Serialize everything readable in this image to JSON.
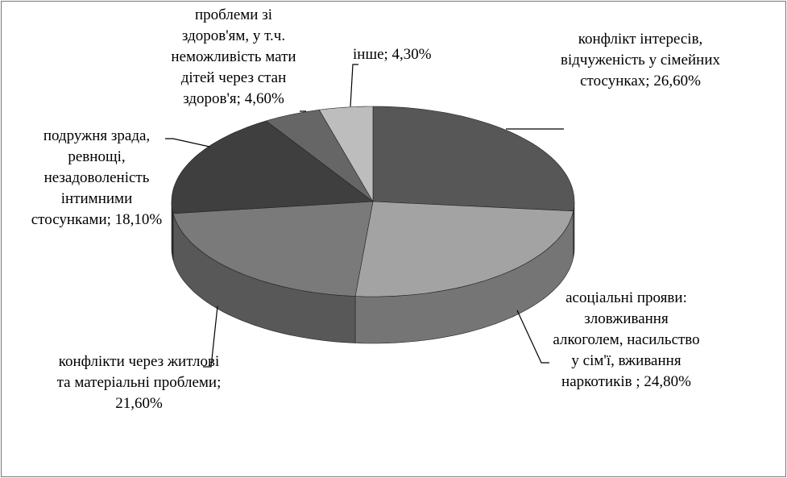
{
  "chart_data": {
    "type": "pie",
    "categories": [
      "конфлікт інтересів, відчуженість у сімейних стосунках;",
      "асоціальні прояви: зловживання алкоголем, насильство у сім'ї, вживання наркотиків ;",
      "конфлікти через житлові та матеріальні проблеми;",
      "подружня зрада, ревнощі, незадоволеність інтимними стосунками;",
      "проблеми зі здоров'ям, у т.ч. неможливість мати дітей через стан здоров'я;",
      "інше;"
    ],
    "values": [
      26.6,
      24.8,
      21.6,
      18.1,
      4.6,
      4.3
    ],
    "value_labels": [
      "26,60%",
      "24,80%",
      "21,60%",
      "18,10%",
      "4,60%",
      "4,30%"
    ],
    "colors": [
      "#575757",
      "#a3a3a3",
      "#7a7a7a",
      "#3f3f3f",
      "#666666",
      "#bdbdbd"
    ]
  }
}
